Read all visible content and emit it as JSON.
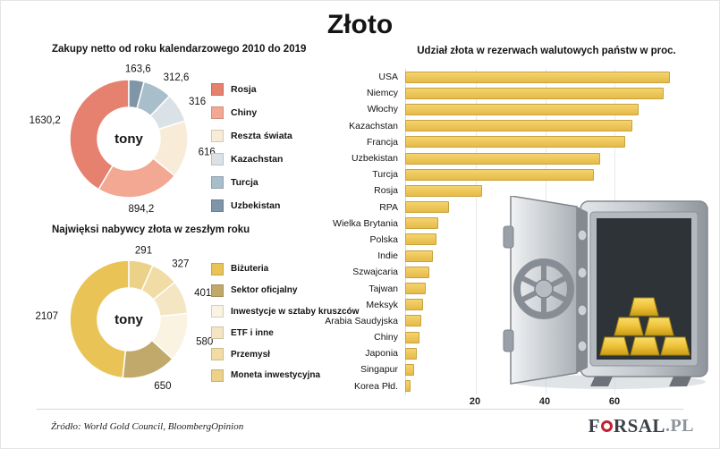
{
  "header": {
    "title": "Złoto"
  },
  "footer": {
    "source": "Źródło:  World Gold Council, BloombergOpinion",
    "logo": {
      "part1": "F",
      "o": "O",
      "part2": "RSAL",
      "suffix": ".PL"
    }
  },
  "chart_data": [
    {
      "type": "donut",
      "title": "Zakupy netto od roku kalendarzowego 2010 do 2019",
      "center_label": "tony",
      "direction": "counterclockwise",
      "labels": [
        "Rosja",
        "Chiny",
        "Reszta świata",
        "Kazachstan",
        "Turcja",
        "Uzbekistan"
      ],
      "values": [
        1630.2,
        894.2,
        616,
        316,
        312.6,
        163.6
      ],
      "display_values": [
        "1630,2",
        "894,2",
        "616",
        "316",
        "312,6",
        "163,6"
      ],
      "colors": [
        "#e6816f",
        "#f2a893",
        "#f8ecd9",
        "#dbe2e7",
        "#a9becb",
        "#7e96a8"
      ],
      "legend_position": "right"
    },
    {
      "type": "donut",
      "title": "Najwięksi nabywcy złota w zeszłym roku",
      "center_label": "tony",
      "direction": "counterclockwise",
      "labels": [
        "Biżuteria",
        "Sektor oficjalny",
        "Inwestycje w sztaby kruszców",
        "ETF i inne",
        "Przemysł",
        "Moneta inwestycyjna"
      ],
      "values": [
        2107,
        650,
        580,
        401,
        327,
        291
      ],
      "display_values": [
        "2107",
        "650",
        "580",
        "401",
        "327",
        "291"
      ],
      "colors": [
        "#e9c355",
        "#c0a96b",
        "#faf3e1",
        "#f4e6c3",
        "#f0dca4",
        "#ecd289"
      ],
      "legend_position": "right"
    },
    {
      "type": "bar",
      "orientation": "horizontal",
      "title": "Udział złota w rezerwach walutowych państw w proc.",
      "categories": [
        "USA",
        "Niemcy",
        "Włochy",
        "Kazachstan",
        "Francja",
        "Uzbekistan",
        "Turcja",
        "Rosja",
        "RPA",
        "Wielka Brytania",
        "Polska",
        "Indie",
        "Szwajcaria",
        "Tajwan",
        "Meksyk",
        "Arabia Saudyjska",
        "Chiny",
        "Japonia",
        "Singapur",
        "Korea Płd."
      ],
      "values": [
        76,
        74,
        67,
        65,
        63,
        56,
        54,
        22,
        12.5,
        9.5,
        9,
        8,
        7,
        6,
        5.2,
        4.6,
        4,
        3.4,
        2.5,
        1.5
      ],
      "xlim": [
        0,
        80
      ],
      "ticks": [
        20,
        40,
        60
      ],
      "bar_color": "#eac75f",
      "grid": true
    }
  ]
}
